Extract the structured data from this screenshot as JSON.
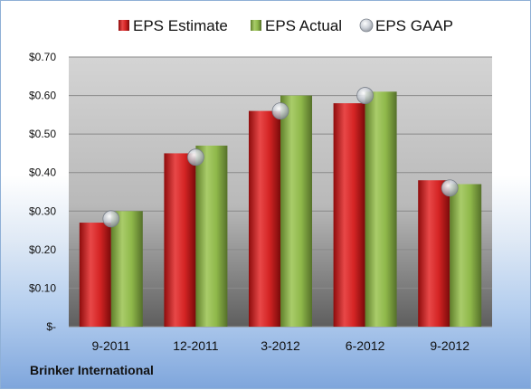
{
  "company": "Brinker International",
  "chart_data": {
    "type": "bar",
    "categories": [
      "9-2011",
      "12-2011",
      "3-2012",
      "6-2012",
      "9-2012"
    ],
    "series": [
      {
        "name": "EPS Estimate",
        "kind": "bar",
        "color": "#cc1f1f",
        "values": [
          0.27,
          0.45,
          0.56,
          0.58,
          0.38
        ]
      },
      {
        "name": "EPS Actual",
        "kind": "bar",
        "color": "#8fb84a",
        "values": [
          0.3,
          0.47,
          0.6,
          0.61,
          0.37
        ]
      },
      {
        "name": "EPS GAAP",
        "kind": "marker",
        "color": "#bfc4cc",
        "values": [
          0.28,
          0.44,
          0.56,
          0.6,
          0.36
        ]
      }
    ],
    "ylim": [
      0,
      0.7
    ],
    "yticks": [
      0,
      0.1,
      0.2,
      0.3,
      0.4,
      0.5,
      0.6,
      0.7
    ],
    "ytick_labels": [
      "$-",
      "$0.10",
      "$0.20",
      "$0.30",
      "$0.40",
      "$0.50",
      "$0.60",
      "$0.70"
    ],
    "grid": true,
    "legend": "top"
  }
}
